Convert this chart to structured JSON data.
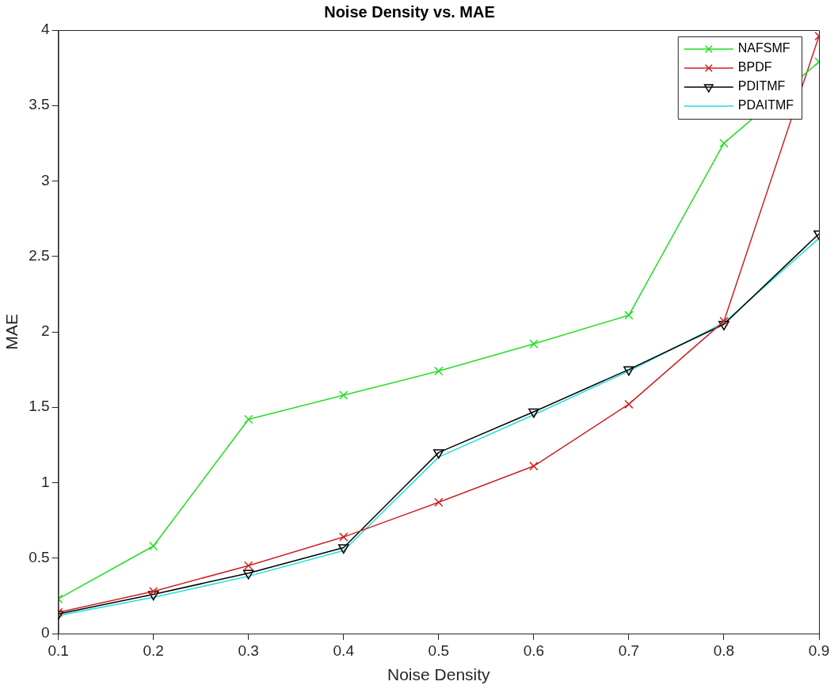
{
  "chart_data": {
    "type": "line",
    "title": "Noise Density vs. MAE",
    "xlabel": "Noise Density",
    "ylabel": "MAE",
    "x": [
      0.1,
      0.2,
      0.3,
      0.4,
      0.5,
      0.6,
      0.7,
      0.8,
      0.9
    ],
    "series": [
      {
        "name": "NAFSMF",
        "color": "#22dd22",
        "marker": "cross",
        "values": [
          0.23,
          0.58,
          1.42,
          1.58,
          1.74,
          1.92,
          2.11,
          3.25,
          3.79
        ]
      },
      {
        "name": "BPDF",
        "color": "#cc2222",
        "marker": "cross",
        "values": [
          0.14,
          0.28,
          0.45,
          0.64,
          0.87,
          1.11,
          1.52,
          2.07,
          3.96
        ]
      },
      {
        "name": "PDITMF",
        "color": "#000000",
        "marker": "triangle",
        "values": [
          0.13,
          0.26,
          0.4,
          0.57,
          1.2,
          1.47,
          1.75,
          2.05,
          2.65
        ]
      },
      {
        "name": "PDAITMF",
        "color": "#22dddd",
        "marker": "none",
        "values": [
          0.12,
          0.24,
          0.38,
          0.55,
          1.17,
          1.45,
          1.74,
          2.06,
          2.62
        ]
      }
    ],
    "xlim": [
      0.1,
      0.9
    ],
    "xticks": [
      0.1,
      0.2,
      0.3,
      0.4,
      0.5,
      0.6,
      0.7,
      0.8,
      0.9
    ],
    "ylim": [
      0,
      4
    ],
    "yticks": [
      0,
      0.5,
      1,
      1.5,
      2,
      2.5,
      3,
      3.5,
      4
    ],
    "grid": false,
    "legend": "top right",
    "line_style": "solid"
  }
}
